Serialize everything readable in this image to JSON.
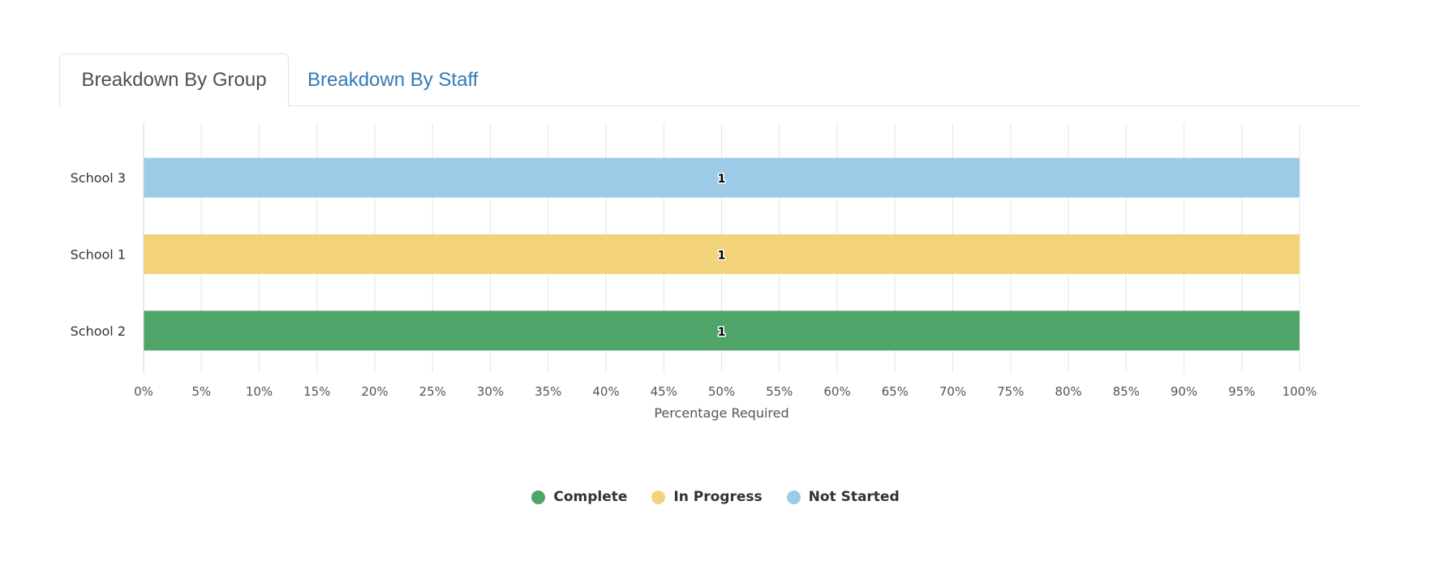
{
  "tabs": [
    {
      "label": "Breakdown By Group",
      "active": true
    },
    {
      "label": "Breakdown By Staff",
      "active": false
    }
  ],
  "colors": {
    "complete": "#4fa46a",
    "in_progress": "#f3d37a",
    "not_started": "#9ccbe8",
    "grid": "#e6e6e6",
    "axis": "#ccd6eb",
    "tab_link": "#337ab7"
  },
  "chart_data": {
    "type": "bar",
    "orientation": "horizontal",
    "stacking": "percent",
    "categories": [
      "School 3",
      "School 1",
      "School 2"
    ],
    "series": [
      {
        "name": "Complete",
        "color": "#4fa46a",
        "values": [
          0,
          0,
          1
        ]
      },
      {
        "name": "In Progress",
        "color": "#f3d37a",
        "values": [
          0,
          1,
          0
        ]
      },
      {
        "name": "Not Started",
        "color": "#9ccbe8",
        "values": [
          1,
          0,
          0
        ]
      }
    ],
    "data_labels": [
      "1",
      "1",
      "1"
    ],
    "xlabel": "Percentage Required",
    "xlim": [
      0,
      100
    ],
    "x_ticks": [
      "0%",
      "5%",
      "10%",
      "15%",
      "20%",
      "25%",
      "30%",
      "35%",
      "40%",
      "45%",
      "50%",
      "55%",
      "60%",
      "65%",
      "70%",
      "75%",
      "80%",
      "85%",
      "90%",
      "95%",
      "100%"
    ],
    "grid": true,
    "legend": "bottom-center"
  },
  "legend": [
    {
      "label": "Complete",
      "color": "#4fa46a"
    },
    {
      "label": "In Progress",
      "color": "#f3d37a"
    },
    {
      "label": "Not Started",
      "color": "#9ccbe8"
    }
  ]
}
